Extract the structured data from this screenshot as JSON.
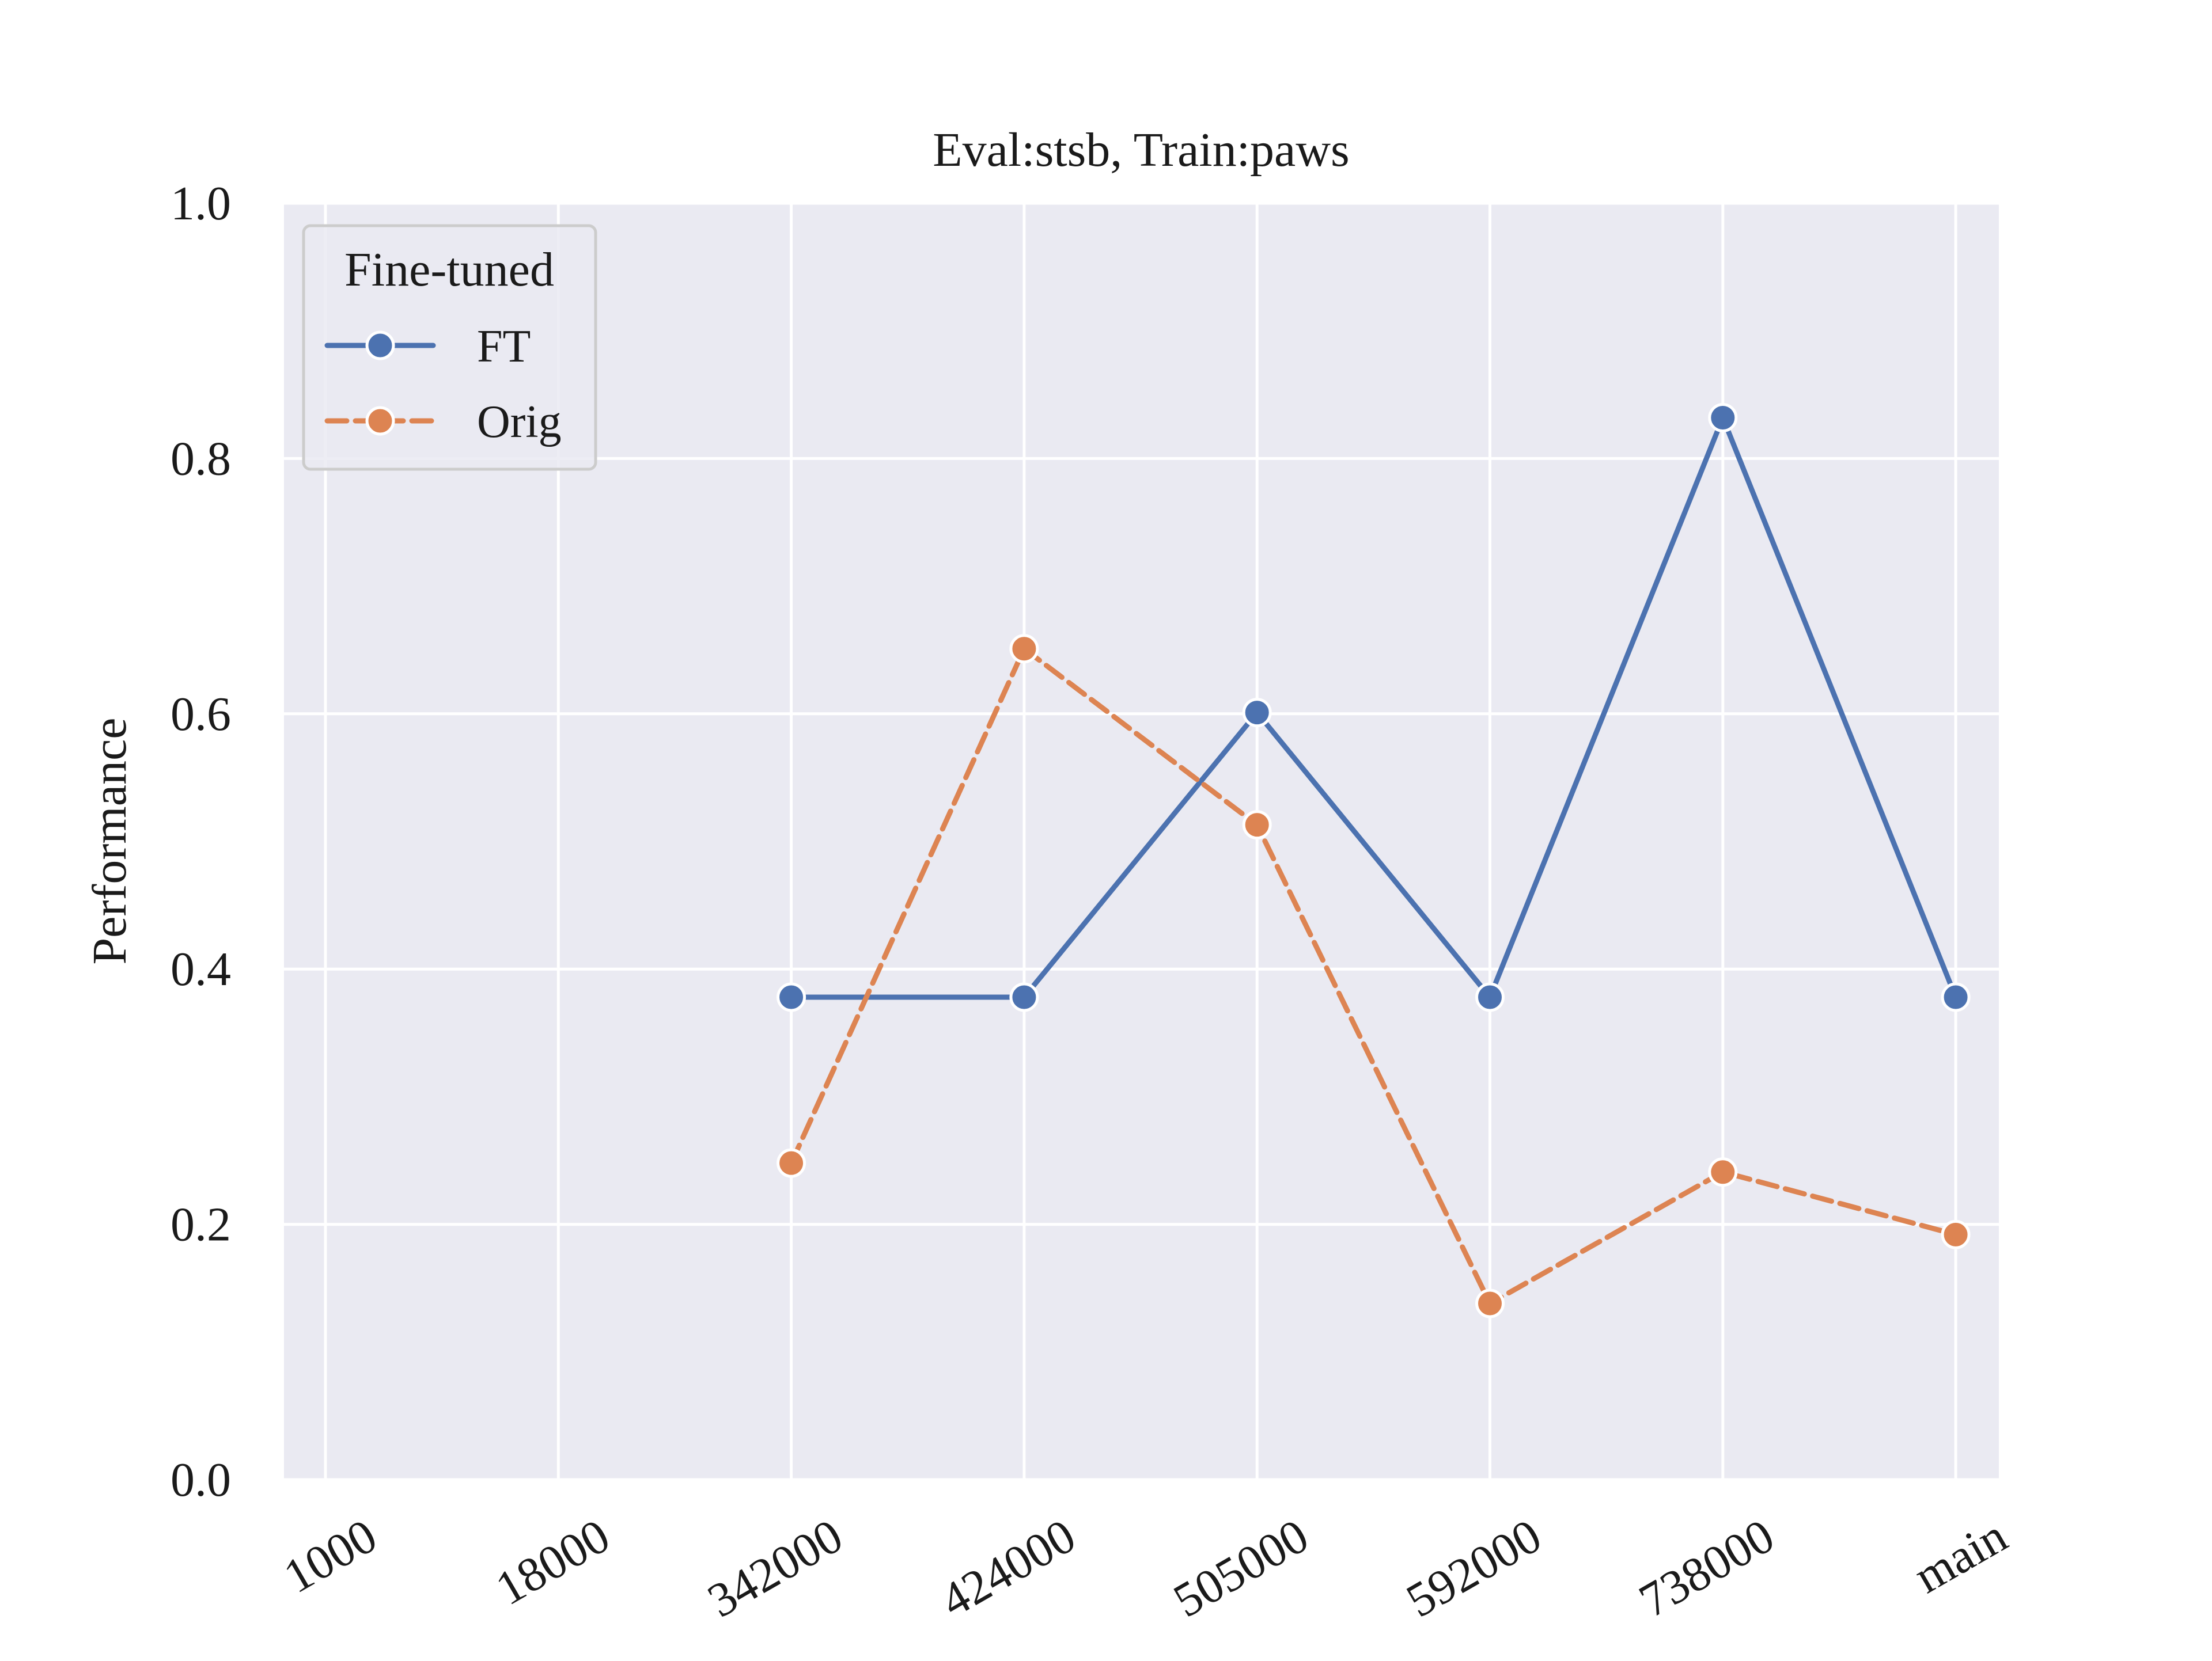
{
  "chart_data": {
    "type": "line",
    "title": "Eval:stsb, Train:paws",
    "xlabel": "",
    "ylabel": "Performance",
    "categories": [
      "1000",
      "18000",
      "342000",
      "424000",
      "505000",
      "592000",
      "738000",
      "main"
    ],
    "ylim": [
      0.0,
      1.0
    ],
    "yticks": [
      "0.0",
      "0.2",
      "0.4",
      "0.6",
      "0.8",
      "1.0"
    ],
    "grid": true,
    "legend": {
      "title": "Fine-tuned",
      "placement": "top-left"
    },
    "series": [
      {
        "name": "FT",
        "color": "#4c72b0",
        "dashed": false,
        "values": [
          null,
          null,
          0.378,
          0.378,
          0.601,
          0.378,
          0.832,
          0.378
        ]
      },
      {
        "name": "Orig",
        "color": "#dd8452",
        "dashed": true,
        "values": [
          null,
          null,
          0.248,
          0.651,
          0.513,
          0.138,
          0.241,
          0.192
        ]
      }
    ]
  }
}
